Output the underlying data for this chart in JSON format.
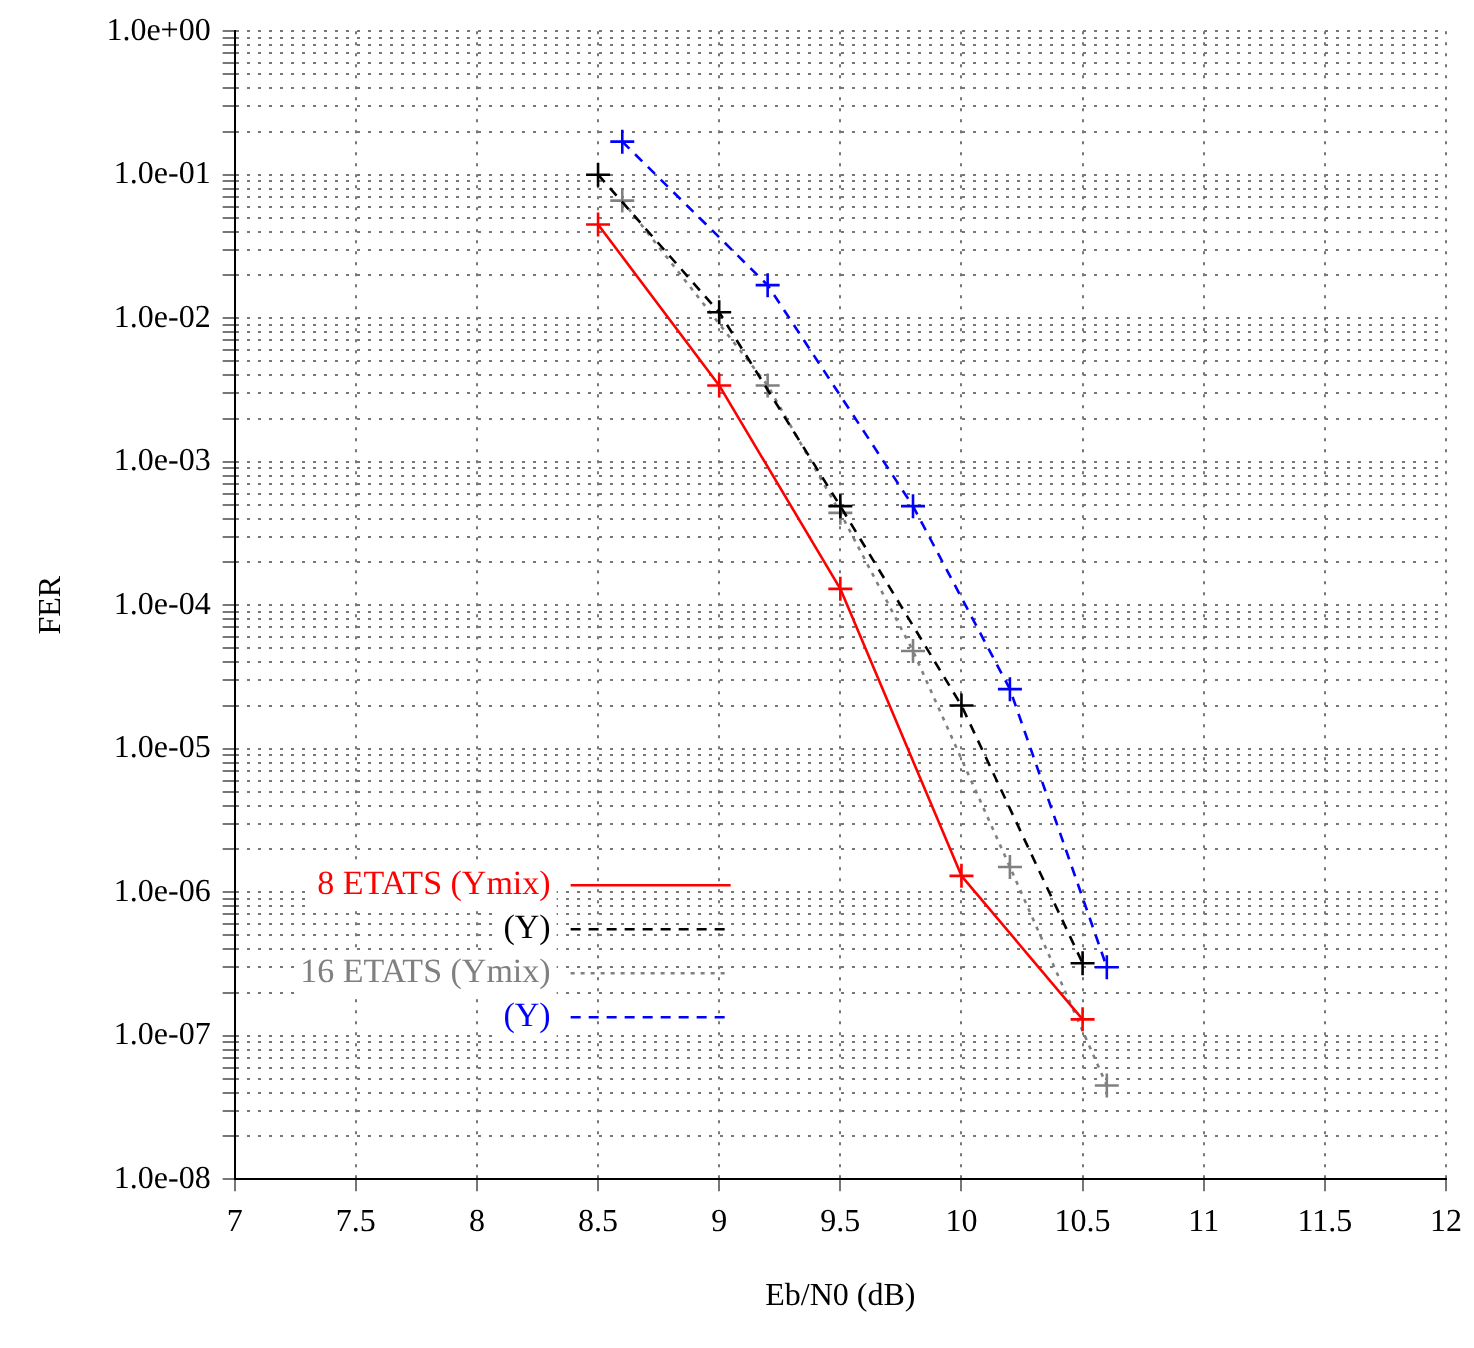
{
  "chart_data": {
    "type": "line",
    "xlabel": "Eb/N0 (dB)",
    "ylabel": "FER",
    "log": "y",
    "grid": true,
    "legend": "bottom left",
    "marker": "cross",
    "xlim": [
      7,
      12
    ],
    "xticks": [
      7,
      7.5,
      8,
      8.5,
      9,
      9.5,
      10,
      10.5,
      11,
      11.5,
      12
    ],
    "ylim": [
      1e-08,
      1
    ],
    "yticks": [
      {
        "value": 1e-08,
        "label": "1.0e-08"
      },
      {
        "value": 2e-08,
        "label": null
      },
      {
        "value": 3e-08,
        "label": null
      },
      {
        "value": 4e-08,
        "label": null
      },
      {
        "value": 5e-08,
        "label": null
      },
      {
        "value": 6e-08,
        "label": null
      },
      {
        "value": 7e-08,
        "label": null
      },
      {
        "value": 8e-08,
        "label": null
      },
      {
        "value": 9e-08,
        "label": null
      },
      {
        "value": 1e-07,
        "label": "1.0e-07"
      },
      {
        "value": 2e-07,
        "label": null
      },
      {
        "value": 3e-07,
        "label": null
      },
      {
        "value": 4e-07,
        "label": null
      },
      {
        "value": 5e-07,
        "label": null
      },
      {
        "value": 6e-07,
        "label": null
      },
      {
        "value": 7e-07,
        "label": null
      },
      {
        "value": 8e-07,
        "label": null
      },
      {
        "value": 9e-07,
        "label": null
      },
      {
        "value": 1e-06,
        "label": "1.0e-06"
      },
      {
        "value": 2e-06,
        "label": null
      },
      {
        "value": 3e-06,
        "label": null
      },
      {
        "value": 4e-06,
        "label": null
      },
      {
        "value": 5e-06,
        "label": null
      },
      {
        "value": 6e-06,
        "label": null
      },
      {
        "value": 7e-06,
        "label": null
      },
      {
        "value": 8e-06,
        "label": null
      },
      {
        "value": 9e-06,
        "label": null
      },
      {
        "value": 1e-05,
        "label": "1.0e-05"
      },
      {
        "value": 2e-05,
        "label": null
      },
      {
        "value": 3e-05,
        "label": null
      },
      {
        "value": 4e-05,
        "label": null
      },
      {
        "value": 5e-05,
        "label": null
      },
      {
        "value": 6e-05,
        "label": null
      },
      {
        "value": 7e-05,
        "label": null
      },
      {
        "value": 8e-05,
        "label": null
      },
      {
        "value": 9e-05,
        "label": null
      },
      {
        "value": 0.0001,
        "label": "1.0e-04"
      },
      {
        "value": 0.0002,
        "label": null
      },
      {
        "value": 0.0003,
        "label": null
      },
      {
        "value": 0.0004,
        "label": null
      },
      {
        "value": 0.0005,
        "label": null
      },
      {
        "value": 0.0006,
        "label": null
      },
      {
        "value": 0.0007,
        "label": null
      },
      {
        "value": 0.0008,
        "label": null
      },
      {
        "value": 0.0009,
        "label": null
      },
      {
        "value": 0.001,
        "label": "1.0e-03"
      },
      {
        "value": 0.002,
        "label": null
      },
      {
        "value": 0.003,
        "label": null
      },
      {
        "value": 0.004,
        "label": null
      },
      {
        "value": 0.005,
        "label": null
      },
      {
        "value": 0.006,
        "label": null
      },
      {
        "value": 0.007,
        "label": null
      },
      {
        "value": 0.008,
        "label": null
      },
      {
        "value": 0.009,
        "label": null
      },
      {
        "value": 0.01,
        "label": "1.0e-02"
      },
      {
        "value": 0.02,
        "label": null
      },
      {
        "value": 0.03,
        "label": null
      },
      {
        "value": 0.04,
        "label": null
      },
      {
        "value": 0.05,
        "label": null
      },
      {
        "value": 0.06,
        "label": null
      },
      {
        "value": 0.07,
        "label": null
      },
      {
        "value": 0.08,
        "label": null
      },
      {
        "value": 0.09,
        "label": null
      },
      {
        "value": 0.1,
        "label": "1.0e-01"
      },
      {
        "value": 0.2,
        "label": null
      },
      {
        "value": 0.3,
        "label": null
      },
      {
        "value": 0.4,
        "label": null
      },
      {
        "value": 0.5,
        "label": null
      },
      {
        "value": 0.6,
        "label": null
      },
      {
        "value": 0.7,
        "label": null
      },
      {
        "value": 0.8,
        "label": null
      },
      {
        "value": 0.9,
        "label": null
      },
      {
        "value": 1,
        "label": "1.0e+00"
      }
    ],
    "series": [
      {
        "name": "8 ETATS (Ymix)",
        "color": "#ff0000",
        "line_style": "solid",
        "x": [
          8.5,
          9,
          9.5,
          10,
          10.5
        ],
        "values": [
          0.045,
          0.0034,
          0.00013,
          1.3e-06,
          1.3e-07
        ]
      },
      {
        "name": "(Y)",
        "color": "#000000",
        "line_style": "dashed",
        "x": [
          8.5,
          9,
          9.5,
          10,
          10.5
        ],
        "values": [
          0.1,
          0.011,
          0.00049,
          2e-05,
          3.2e-07
        ]
      },
      {
        "name": "16 ETATS (Ymix)",
        "color": "#808080",
        "line_style": "dotted",
        "x": [
          8.6,
          9.2,
          9.5,
          9.8,
          10.2,
          10.6
        ],
        "values": [
          0.066,
          0.0034,
          0.00044,
          4.8e-05,
          1.5e-06,
          4.5e-08
        ]
      },
      {
        "name": "(Y)",
        "color": "#0000ff",
        "line_style": "dashed",
        "x": [
          8.6,
          9.2,
          9.8,
          10.2,
          10.6
        ],
        "values": [
          0.17,
          0.017,
          0.00049,
          2.6e-05,
          3e-07
        ]
      }
    ]
  }
}
